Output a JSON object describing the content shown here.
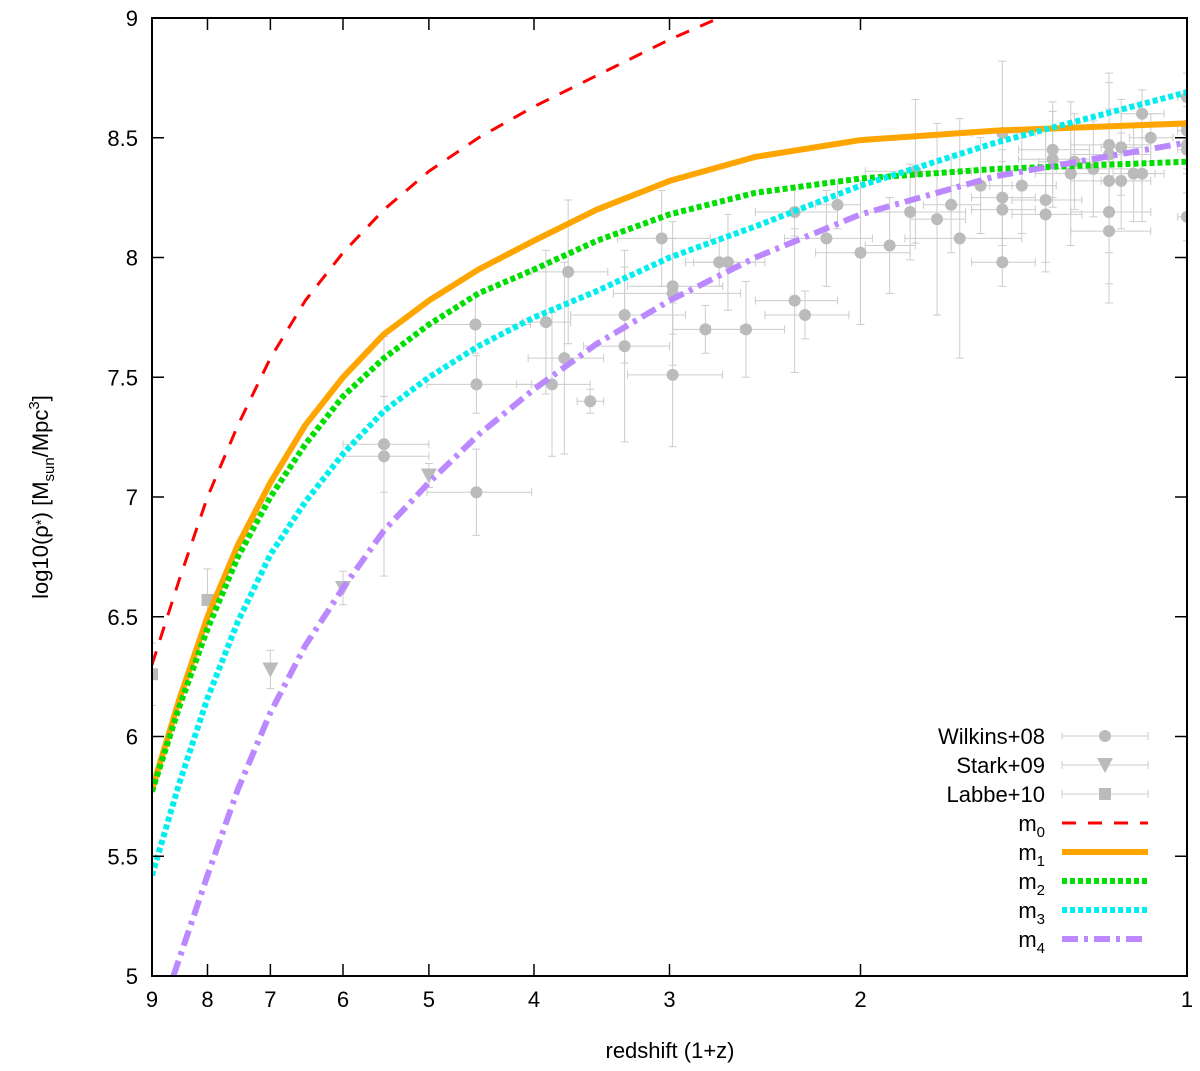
{
  "chart_data": {
    "type": "scatter",
    "title": "",
    "xlabel": "redshift (1+z)",
    "ylabel_main": "log10(ρ",
    "ylabel_star": "*",
    "ylabel_mid": ") [M",
    "ylabel_sub": "sun",
    "ylabel_tail": "/Mpc",
    "ylabel_sup": "3",
    "ylabel_close": "]",
    "x_scale": "log_reversed",
    "xlim": [
      9,
      1
    ],
    "ylim": [
      5,
      9
    ],
    "x_ticks": [
      9,
      8,
      7,
      6,
      5,
      4,
      3,
      2,
      1
    ],
    "x_tick_labels": [
      "9",
      "8",
      "7",
      "6",
      "5",
      "4",
      "3",
      "2",
      "1"
    ],
    "y_ticks": [
      5,
      5.5,
      6,
      6.5,
      7,
      7.5,
      8,
      8.5,
      9
    ],
    "y_tick_labels": [
      "5",
      "5.5",
      "6",
      "6.5",
      "7",
      "7.5",
      "8",
      "8.5",
      "9"
    ],
    "legend_position": "bottom-right",
    "points": [
      {
        "name": "Wilkins+08",
        "marker": "circle",
        "color": "#bbbbbb",
        "data": [
          [
            4.53,
            7.72,
            0.5,
            0.12
          ],
          [
            4.52,
            7.47,
            0.5,
            0.12
          ],
          [
            4.52,
            7.02,
            0.5,
            0.18
          ],
          [
            5.5,
            7.22,
            0.5,
            0.2
          ],
          [
            5.5,
            7.17,
            0.5,
            0.5
          ],
          [
            3.9,
            7.73,
            0.2,
            0.3
          ],
          [
            3.75,
            7.58,
            0.3,
            0.4
          ],
          [
            3.72,
            7.94,
            0.3,
            0.3
          ],
          [
            3.85,
            7.47,
            0.3,
            0.3
          ],
          [
            3.55,
            7.4,
            0.1,
            0.05
          ],
          [
            3.3,
            7.76,
            0.4,
            0.2
          ],
          [
            3.3,
            7.63,
            0.3,
            0.4
          ],
          [
            3.05,
            8.08,
            0.3,
            0.2
          ],
          [
            2.98,
            7.88,
            0.3,
            0.2
          ],
          [
            2.98,
            7.85,
            0.4,
            0.3
          ],
          [
            2.98,
            7.51,
            0.3,
            0.3
          ],
          [
            2.7,
            7.98,
            0.2,
            0.1
          ],
          [
            2.65,
            7.98,
            0.2,
            0.2
          ],
          [
            2.78,
            7.7,
            0.2,
            0.1
          ],
          [
            2.55,
            7.7,
            0.2,
            0.2
          ],
          [
            2.3,
            7.82,
            0.2,
            0.3
          ],
          [
            2.25,
            7.76,
            0.2,
            0.1
          ],
          [
            2.3,
            8.19,
            0.2,
            0.1
          ],
          [
            2.15,
            8.08,
            0.2,
            0.2
          ],
          [
            2.1,
            8.22,
            0.1,
            0.1
          ],
          [
            2.0,
            8.02,
            0.2,
            0.3
          ],
          [
            1.88,
            8.05,
            0.1,
            0.2
          ],
          [
            1.8,
            8.19,
            0.2,
            0.2
          ],
          [
            1.78,
            8.36,
            0.2,
            0.3
          ],
          [
            1.7,
            8.16,
            0.1,
            0.4
          ],
          [
            1.65,
            8.22,
            0.1,
            0.2
          ],
          [
            1.62,
            8.08,
            0.2,
            0.5
          ],
          [
            1.55,
            8.3,
            0.1,
            0.2
          ],
          [
            1.48,
            8.52,
            0.1,
            0.3
          ],
          [
            1.48,
            8.2,
            0.1,
            0.2
          ],
          [
            1.48,
            8.25,
            0.1,
            0.2
          ],
          [
            1.48,
            7.98,
            0.1,
            0.1
          ],
          [
            1.42,
            8.3,
            0.1,
            0.2
          ],
          [
            1.35,
            8.18,
            0.1,
            0.2
          ],
          [
            1.35,
            8.24,
            0.1,
            0.3
          ],
          [
            1.33,
            8.41,
            0.1,
            0.2
          ],
          [
            1.33,
            8.45,
            0.1,
            0.2
          ],
          [
            1.28,
            8.35,
            0.1,
            0.3
          ],
          [
            1.27,
            8.4,
            0.1,
            0.2
          ],
          [
            1.22,
            8.37,
            0.1,
            0.2
          ],
          [
            1.18,
            8.47,
            0.1,
            0.3
          ],
          [
            1.18,
            8.43,
            0.1,
            0.3
          ],
          [
            1.18,
            8.32,
            0.1,
            0.3
          ],
          [
            1.18,
            8.19,
            0.1,
            0.3
          ],
          [
            1.18,
            8.11,
            0.1,
            0.3
          ],
          [
            1.15,
            8.32,
            0.05,
            0.2
          ],
          [
            1.15,
            8.46,
            0.05,
            0.2
          ],
          [
            1.12,
            8.35,
            0.05,
            0.2
          ],
          [
            1.1,
            8.35,
            0.05,
            0.2
          ],
          [
            1.1,
            8.6,
            0.05,
            0.1
          ],
          [
            1.08,
            8.5,
            0.05,
            0.1
          ],
          [
            1.0,
            8.67,
            0.02,
            0.1
          ],
          [
            1.0,
            8.55,
            0.02,
            0.1
          ],
          [
            1.0,
            8.53,
            0.02,
            0.1
          ],
          [
            1.0,
            8.47,
            0.02,
            0.1
          ],
          [
            1.0,
            8.45,
            0.02,
            0.1
          ],
          [
            1.0,
            8.17,
            0.02,
            0.1
          ]
        ]
      },
      {
        "name": "Stark+09",
        "marker": "triangle-down",
        "color": "#bbbbbb",
        "data": [
          [
            7.0,
            6.28,
            0,
            0.08
          ],
          [
            6.0,
            6.62,
            0,
            0.07
          ],
          [
            5.0,
            7.09,
            0,
            0.05
          ]
        ]
      },
      {
        "name": "Labbe+10",
        "marker": "square",
        "color": "#bbbbbb",
        "data": [
          [
            9.0,
            6.26,
            0,
            0.13
          ],
          [
            8.0,
            6.57,
            0,
            0.13
          ]
        ]
      }
    ],
    "series": [
      {
        "name": "m",
        "index": "0",
        "color": "#ff0000",
        "style": "dashed",
        "x": [
          9,
          8.5,
          8,
          7.5,
          7,
          6.5,
          6,
          5.5,
          5,
          4.5,
          4,
          3.5,
          3,
          2.7
        ],
        "y": [
          6.3,
          6.65,
          7.0,
          7.3,
          7.58,
          7.82,
          8.02,
          8.2,
          8.36,
          8.5,
          8.63,
          8.76,
          8.91,
          9.0
        ]
      },
      {
        "name": "m",
        "index": "1",
        "color": "#ffa500",
        "style": "solid",
        "x": [
          9,
          8.5,
          8,
          7.5,
          7,
          6.5,
          6,
          5.5,
          5,
          4.5,
          4,
          3.5,
          3,
          2.5,
          2,
          1.5,
          1
        ],
        "y": [
          5.78,
          6.15,
          6.5,
          6.8,
          7.06,
          7.3,
          7.5,
          7.68,
          7.82,
          7.95,
          8.07,
          8.2,
          8.32,
          8.42,
          8.49,
          8.53,
          8.56
        ]
      },
      {
        "name": "m",
        "index": "2",
        "color": "#00dd00",
        "style": "dotted",
        "x": [
          9,
          8.5,
          8,
          7.5,
          7,
          6.5,
          6,
          5.5,
          5,
          4.5,
          4,
          3.5,
          3,
          2.5,
          2,
          1.5,
          1
        ],
        "y": [
          5.77,
          6.12,
          6.45,
          6.75,
          7.0,
          7.22,
          7.42,
          7.58,
          7.72,
          7.85,
          7.95,
          8.07,
          8.18,
          8.27,
          8.33,
          8.37,
          8.4
        ]
      },
      {
        "name": "m",
        "index": "3",
        "color": "#00eeee",
        "style": "dotted",
        "x": [
          9,
          8.5,
          8,
          7.5,
          7,
          6.5,
          6,
          5.5,
          5,
          4.5,
          4,
          3.5,
          3,
          2.5,
          2,
          1.5,
          1
        ],
        "y": [
          5.42,
          5.8,
          6.16,
          6.48,
          6.76,
          6.98,
          7.18,
          7.36,
          7.5,
          7.63,
          7.75,
          7.86,
          8.0,
          8.13,
          8.3,
          8.48,
          8.69
        ]
      },
      {
        "name": "m",
        "index": "4",
        "color": "#bb88ff",
        "style": "dashdot",
        "x": [
          8.6,
          8,
          7.5,
          7,
          6.5,
          6,
          5.5,
          5,
          4.5,
          4,
          3.5,
          3,
          2.5,
          2,
          1.5,
          1
        ],
        "y": [
          5.0,
          5.42,
          5.78,
          6.1,
          6.38,
          6.62,
          6.86,
          7.06,
          7.26,
          7.45,
          7.64,
          7.82,
          8.0,
          8.18,
          8.34,
          8.48
        ]
      }
    ]
  }
}
